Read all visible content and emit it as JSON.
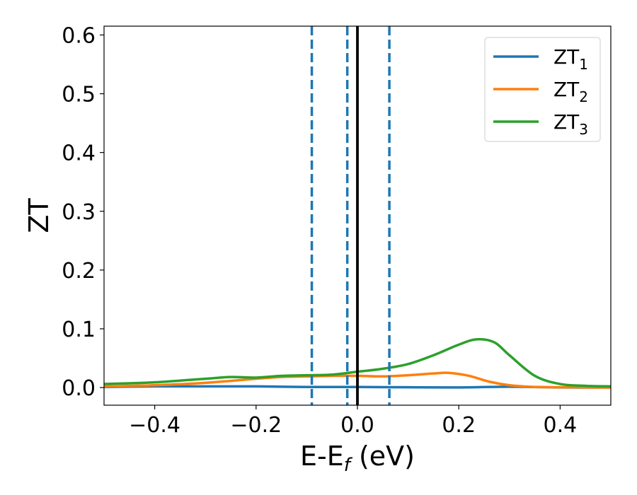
{
  "chart_data": {
    "type": "line",
    "xlabel": {
      "main": "E-E",
      "sub": "f",
      "tail": " (eV)"
    },
    "ylabel": "ZT",
    "xlim": [
      -0.5,
      0.5
    ],
    "ylim": [
      -0.03,
      0.615
    ],
    "xticks": [
      -0.4,
      -0.2,
      0.0,
      0.2,
      0.4
    ],
    "xtick_labels": [
      "−0.4",
      "−0.2",
      "0.0",
      "0.2",
      "0.4"
    ],
    "yticks": [
      0.0,
      0.1,
      0.2,
      0.3,
      0.4,
      0.5,
      0.6
    ],
    "ytick_labels": [
      "0.0",
      "0.1",
      "0.2",
      "0.3",
      "0.4",
      "0.5",
      "0.6"
    ],
    "grid": false,
    "legend_position": "top-right",
    "vlines": [
      {
        "x": -0.09,
        "style": "dashed",
        "color": "#1f77b4"
      },
      {
        "x": -0.02,
        "style": "dashed",
        "color": "#1f77b4"
      },
      {
        "x": 0.0,
        "style": "solid",
        "color": "#000000"
      },
      {
        "x": 0.063,
        "style": "dashed",
        "color": "#1f77b4"
      }
    ],
    "series": [
      {
        "name": "ZT",
        "sub": "1",
        "color": "#1f77b4",
        "x": [
          -0.5,
          -0.4,
          -0.3,
          -0.2,
          -0.1,
          0.0,
          0.1,
          0.2,
          0.3,
          0.4,
          0.5
        ],
        "y": [
          0.001,
          0.002,
          0.002,
          0.002,
          0.001,
          0.001,
          0.0005,
          0.0003,
          0.0015,
          0.0002,
          0.0001
        ]
      },
      {
        "name": "ZT",
        "sub": "2",
        "color": "#ff7f0e",
        "x": [
          -0.5,
          -0.4,
          -0.3,
          -0.2,
          -0.15,
          -0.1,
          -0.05,
          0.0,
          0.05,
          0.1,
          0.15,
          0.18,
          0.22,
          0.26,
          0.3,
          0.35,
          0.4,
          0.45,
          0.5
        ],
        "y": [
          0.002,
          0.004,
          0.008,
          0.015,
          0.018,
          0.019,
          0.02,
          0.02,
          0.019,
          0.021,
          0.024,
          0.025,
          0.02,
          0.01,
          0.004,
          0.001,
          0.0005,
          0.0002,
          0.0001
        ]
      },
      {
        "name": "ZT",
        "sub": "3",
        "color": "#2ca02c",
        "x": [
          -0.5,
          -0.4,
          -0.3,
          -0.25,
          -0.2,
          -0.15,
          -0.1,
          -0.05,
          0.0,
          0.05,
          0.1,
          0.15,
          0.2,
          0.235,
          0.27,
          0.3,
          0.35,
          0.4,
          0.45,
          0.5
        ],
        "y": [
          0.006,
          0.009,
          0.015,
          0.018,
          0.017,
          0.02,
          0.021,
          0.022,
          0.027,
          0.032,
          0.04,
          0.055,
          0.073,
          0.082,
          0.077,
          0.055,
          0.02,
          0.006,
          0.003,
          0.002
        ]
      }
    ]
  }
}
